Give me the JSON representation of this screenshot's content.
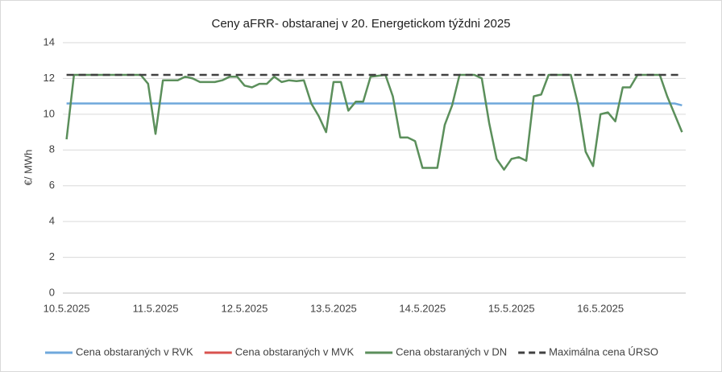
{
  "chart_data": {
    "type": "line",
    "title": "Ceny aFRR- obstaranej v 20. Energetickom týždni 2025",
    "y_label": "€/ MWh",
    "categories": [
      "10.5.2025",
      null,
      null,
      null,
      null,
      null,
      null,
      null,
      null,
      null,
      null,
      null,
      "11.5.2025",
      null,
      null,
      null,
      null,
      null,
      null,
      null,
      null,
      null,
      null,
      null,
      "12.5.2025",
      null,
      null,
      null,
      null,
      null,
      null,
      null,
      null,
      null,
      null,
      null,
      "13.5.2025",
      null,
      null,
      null,
      null,
      null,
      null,
      null,
      null,
      null,
      null,
      null,
      "14.5.2025",
      null,
      null,
      null,
      null,
      null,
      null,
      null,
      null,
      null,
      null,
      null,
      "15.5.2025",
      null,
      null,
      null,
      null,
      null,
      null,
      null,
      null,
      null,
      null,
      null,
      "16.5.2025",
      null,
      null,
      null,
      null,
      null,
      null,
      null,
      null,
      null,
      null,
      null
    ],
    "series": [
      {
        "name": "Cena obstaraných v RVK",
        "color": "#6fa8dc",
        "width": 2.5,
        "dash": false,
        "values": [
          10.6,
          10.6,
          10.6,
          10.6,
          10.6,
          10.6,
          10.6,
          10.6,
          10.6,
          10.6,
          10.6,
          10.6,
          10.6,
          10.6,
          10.6,
          10.6,
          10.6,
          10.6,
          10.6,
          10.6,
          10.6,
          10.6,
          10.6,
          10.6,
          10.6,
          10.6,
          10.6,
          10.6,
          10.6,
          10.6,
          10.6,
          10.6,
          10.6,
          10.6,
          10.6,
          10.6,
          10.6,
          10.6,
          10.6,
          10.6,
          10.6,
          10.6,
          10.6,
          10.6,
          10.6,
          10.6,
          10.6,
          10.6,
          10.6,
          10.6,
          10.6,
          10.6,
          10.6,
          10.6,
          10.6,
          10.6,
          10.6,
          10.6,
          10.6,
          10.6,
          10.6,
          10.6,
          10.6,
          10.6,
          10.6,
          10.6,
          10.6,
          10.6,
          10.6,
          10.6,
          10.6,
          10.6,
          10.6,
          10.6,
          10.6,
          10.6,
          10.6,
          10.6,
          10.6,
          10.6,
          10.6,
          10.6,
          10.6,
          10.5
        ]
      },
      {
        "name": "Cena obstaraných v MVK",
        "color": "#d9534f",
        "width": 2.5,
        "dash": false,
        "values": [
          null,
          null,
          null,
          null,
          null,
          null,
          null,
          null,
          null,
          null,
          null,
          null,
          null,
          null,
          null,
          null,
          null,
          null,
          null,
          null,
          null,
          null,
          null,
          null,
          null,
          null,
          null,
          null,
          null,
          null,
          null,
          null,
          null,
          null,
          null,
          null,
          null,
          null,
          null,
          null,
          null,
          null,
          null,
          null,
          null,
          null,
          null,
          null,
          null,
          null,
          null,
          null,
          null,
          null,
          null,
          null,
          null,
          null,
          null,
          null,
          null,
          null,
          null,
          null,
          null,
          null,
          null,
          null,
          null,
          null,
          null,
          null,
          null,
          null,
          null,
          null,
          null,
          null,
          null,
          null,
          null,
          null,
          null,
          null
        ]
      },
      {
        "name": "Cena obstaraných v DN",
        "color": "#5b8f5b",
        "width": 2.5,
        "dash": false,
        "values": [
          8.6,
          12.2,
          12.2,
          12.2,
          12.2,
          12.2,
          12.2,
          12.2,
          12.2,
          12.2,
          12.2,
          11.7,
          8.9,
          11.9,
          11.9,
          11.9,
          12.1,
          12.0,
          11.8,
          11.8,
          11.8,
          11.9,
          12.1,
          12.1,
          11.6,
          11.5,
          11.7,
          11.7,
          12.1,
          11.8,
          11.9,
          11.85,
          11.9,
          10.6,
          9.9,
          9.0,
          11.8,
          11.8,
          10.2,
          10.7,
          10.7,
          12.1,
          12.15,
          12.2,
          11.0,
          8.7,
          8.7,
          8.5,
          7.0,
          7.0,
          7.0,
          9.4,
          10.5,
          12.2,
          12.2,
          12.2,
          12.0,
          9.5,
          7.5,
          6.9,
          7.5,
          7.6,
          7.4,
          11.0,
          11.1,
          12.2,
          12.2,
          12.2,
          12.2,
          10.5,
          7.9,
          7.1,
          10.0,
          10.1,
          9.6,
          11.5,
          11.5,
          12.2,
          12.2,
          12.2,
          12.2,
          11.0,
          10.0,
          9.0
        ]
      },
      {
        "name": "Maximálna cena ÚRSO",
        "color": "#404040",
        "width": 2.5,
        "dash": true,
        "values": [
          12.2,
          12.2,
          12.2,
          12.2,
          12.2,
          12.2,
          12.2,
          12.2,
          12.2,
          12.2,
          12.2,
          12.2,
          12.2,
          12.2,
          12.2,
          12.2,
          12.2,
          12.2,
          12.2,
          12.2,
          12.2,
          12.2,
          12.2,
          12.2,
          12.2,
          12.2,
          12.2,
          12.2,
          12.2,
          12.2,
          12.2,
          12.2,
          12.2,
          12.2,
          12.2,
          12.2,
          12.2,
          12.2,
          12.2,
          12.2,
          12.2,
          12.2,
          12.2,
          12.2,
          12.2,
          12.2,
          12.2,
          12.2,
          12.2,
          12.2,
          12.2,
          12.2,
          12.2,
          12.2,
          12.2,
          12.2,
          12.2,
          12.2,
          12.2,
          12.2,
          12.2,
          12.2,
          12.2,
          12.2,
          12.2,
          12.2,
          12.2,
          12.2,
          12.2,
          12.2,
          12.2,
          12.2,
          12.2,
          12.2,
          12.2,
          12.2,
          12.2,
          12.2,
          12.2,
          12.2,
          12.2,
          12.2,
          12.2,
          12.2
        ]
      }
    ],
    "ylim": [
      0,
      14
    ],
    "yticks": [
      0,
      2,
      4,
      6,
      8,
      10,
      12,
      14
    ],
    "grid": true,
    "legend": "bottom"
  }
}
